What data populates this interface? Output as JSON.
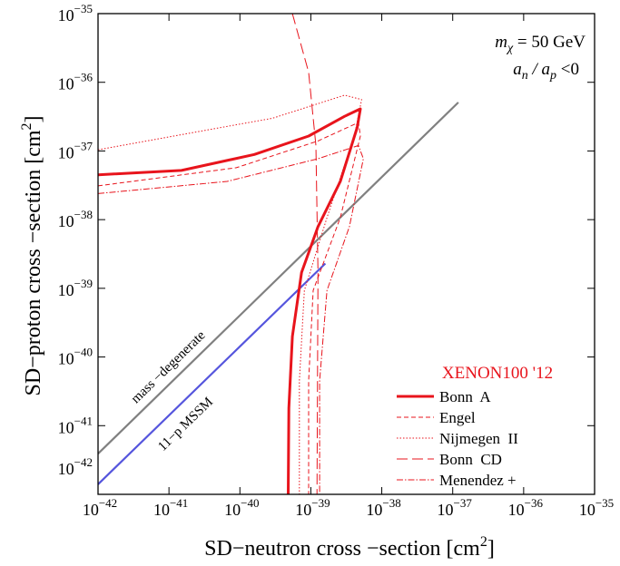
{
  "chart_data": {
    "type": "line",
    "xlabel": [
      "SD−neutron  cross −section  [cm",
      "2",
      "]"
    ],
    "ylabel": [
      "SD−proton  cross −section  [cm",
      "2",
      "]"
    ],
    "annotations": [
      [
        "m",
        "χ",
        " = 50 GeV"
      ],
      [
        "a",
        "n",
        " / a",
        "p",
        " <0"
      ]
    ],
    "legend_title": "XENON100 '12",
    "legend_color": "#e8141c",
    "log_x": true,
    "log_y": true,
    "xlim": [
      1e-42,
      1e-35
    ],
    "ylim": [
      1e-42,
      1e-35
    ],
    "xticks": [
      {
        "value": 1e-42,
        "label": "10−42"
      },
      {
        "value": 1e-41,
        "label": "10−41"
      },
      {
        "value": 1e-40,
        "label": "10−40"
      },
      {
        "value": 1e-39,
        "label": "10−39"
      },
      {
        "value": 1e-38,
        "label": "10−38"
      },
      {
        "value": 1e-37,
        "label": "10−37"
      },
      {
        "value": 1e-36,
        "label": "10−36"
      },
      {
        "value": 1e-35,
        "label": "10−35"
      }
    ],
    "yticks": [
      {
        "value": 1e-42,
        "label": "10−42"
      },
      {
        "value": 1e-41,
        "label": "10−41"
      },
      {
        "value": 1e-40,
        "label": "10−40"
      },
      {
        "value": 1e-39,
        "label": "10−39"
      },
      {
        "value": 1e-38,
        "label": "10−38"
      },
      {
        "value": 1e-37,
        "label": "10−37"
      },
      {
        "value": 1e-36,
        "label": "10−36"
      },
      {
        "value": 1e-35,
        "label": "10−35"
      }
    ],
    "series": [
      {
        "name": "Bonn  A",
        "color": "#e8141c",
        "width": 3,
        "dash": "none",
        "x": [
          1e-42,
          1.5e-41,
          1.6e-40,
          9.3e-40,
          3e-39,
          5e-39,
          4.5e-39,
          2.6e-39,
          1.26e-39,
          7.4e-40,
          5.5e-40,
          4.9e-40,
          4.8e-40
        ],
        "y": [
          4.5e-38,
          5.2e-38,
          8.9e-38,
          1.65e-37,
          3.2e-37,
          4.1e-37,
          2.2e-37,
          3.6e-38,
          7.9e-39,
          1.7e-39,
          2e-40,
          1.8e-41,
          1e-42
        ]
      },
      {
        "name": "Engel",
        "color": "#e8141c",
        "width": 1,
        "dash": "5 3",
        "x": [
          1e-42,
          8.9e-41,
          1.26e-39,
          4.7e-39,
          5e-39,
          2.6e-39,
          1.08e-39,
          9.3e-40,
          9.3e-40
        ],
        "y": [
          3.1e-38,
          5.7e-38,
          1.4e-37,
          2.6e-37,
          1.65e-37,
          1.07e-38,
          9.3e-40,
          4.5e-41,
          1e-42
        ]
      },
      {
        "name": "Nijmegen  II",
        "color": "#e8141c",
        "width": 1,
        "dash": "1.5 2",
        "x": [
          1e-42,
          2.9e-40,
          3e-39,
          5.2e-39,
          4.1e-39,
          1.69e-39,
          8.1e-40,
          6.9e-40,
          6.9e-40
        ],
        "y": [
          1.04e-37,
          3e-37,
          6.5e-37,
          5.6e-37,
          1.65e-37,
          1.07e-38,
          9.3e-40,
          4.5e-41,
          1e-42
        ]
      },
      {
        "name": "Bonn  CD",
        "color": "#e8141c",
        "width": 1,
        "dash": "12 5",
        "x": [
          5.5e-40,
          9.3e-40,
          1.18e-39,
          1.26e-39,
          1.22e-39
        ],
        "y": [
          1e-35,
          1.4e-36,
          1.2e-37,
          1.7e-39,
          1e-42
        ]
      },
      {
        "name": "Menendez +",
        "color": "#e8141c",
        "width": 1,
        "dash": "7 2 1.5 2",
        "x": [
          1e-42,
          6.6e-41,
          1.26e-39,
          4.7e-39,
          5.5e-39,
          3.5e-39,
          1.69e-39,
          1.33e-39,
          1.33e-39
        ],
        "y": [
          2.4e-38,
          3.6e-38,
          7.7e-38,
          1.2e-37,
          7.7e-38,
          7.9e-39,
          9.3e-40,
          4.5e-41,
          1e-42
        ]
      }
    ],
    "lines": [
      {
        "name": "mass −degenerate",
        "color": "#808080",
        "x": [
          1e-42,
          1.2e-37
        ],
        "y": [
          3.9e-42,
          5.1e-37
        ]
      },
      {
        "name": "11−p  MSSM",
        "color": "#5555dd",
        "x": [
          1e-42,
          1.6e-39
        ],
        "y": [
          1.4e-42,
          2.3e-39
        ]
      }
    ]
  }
}
